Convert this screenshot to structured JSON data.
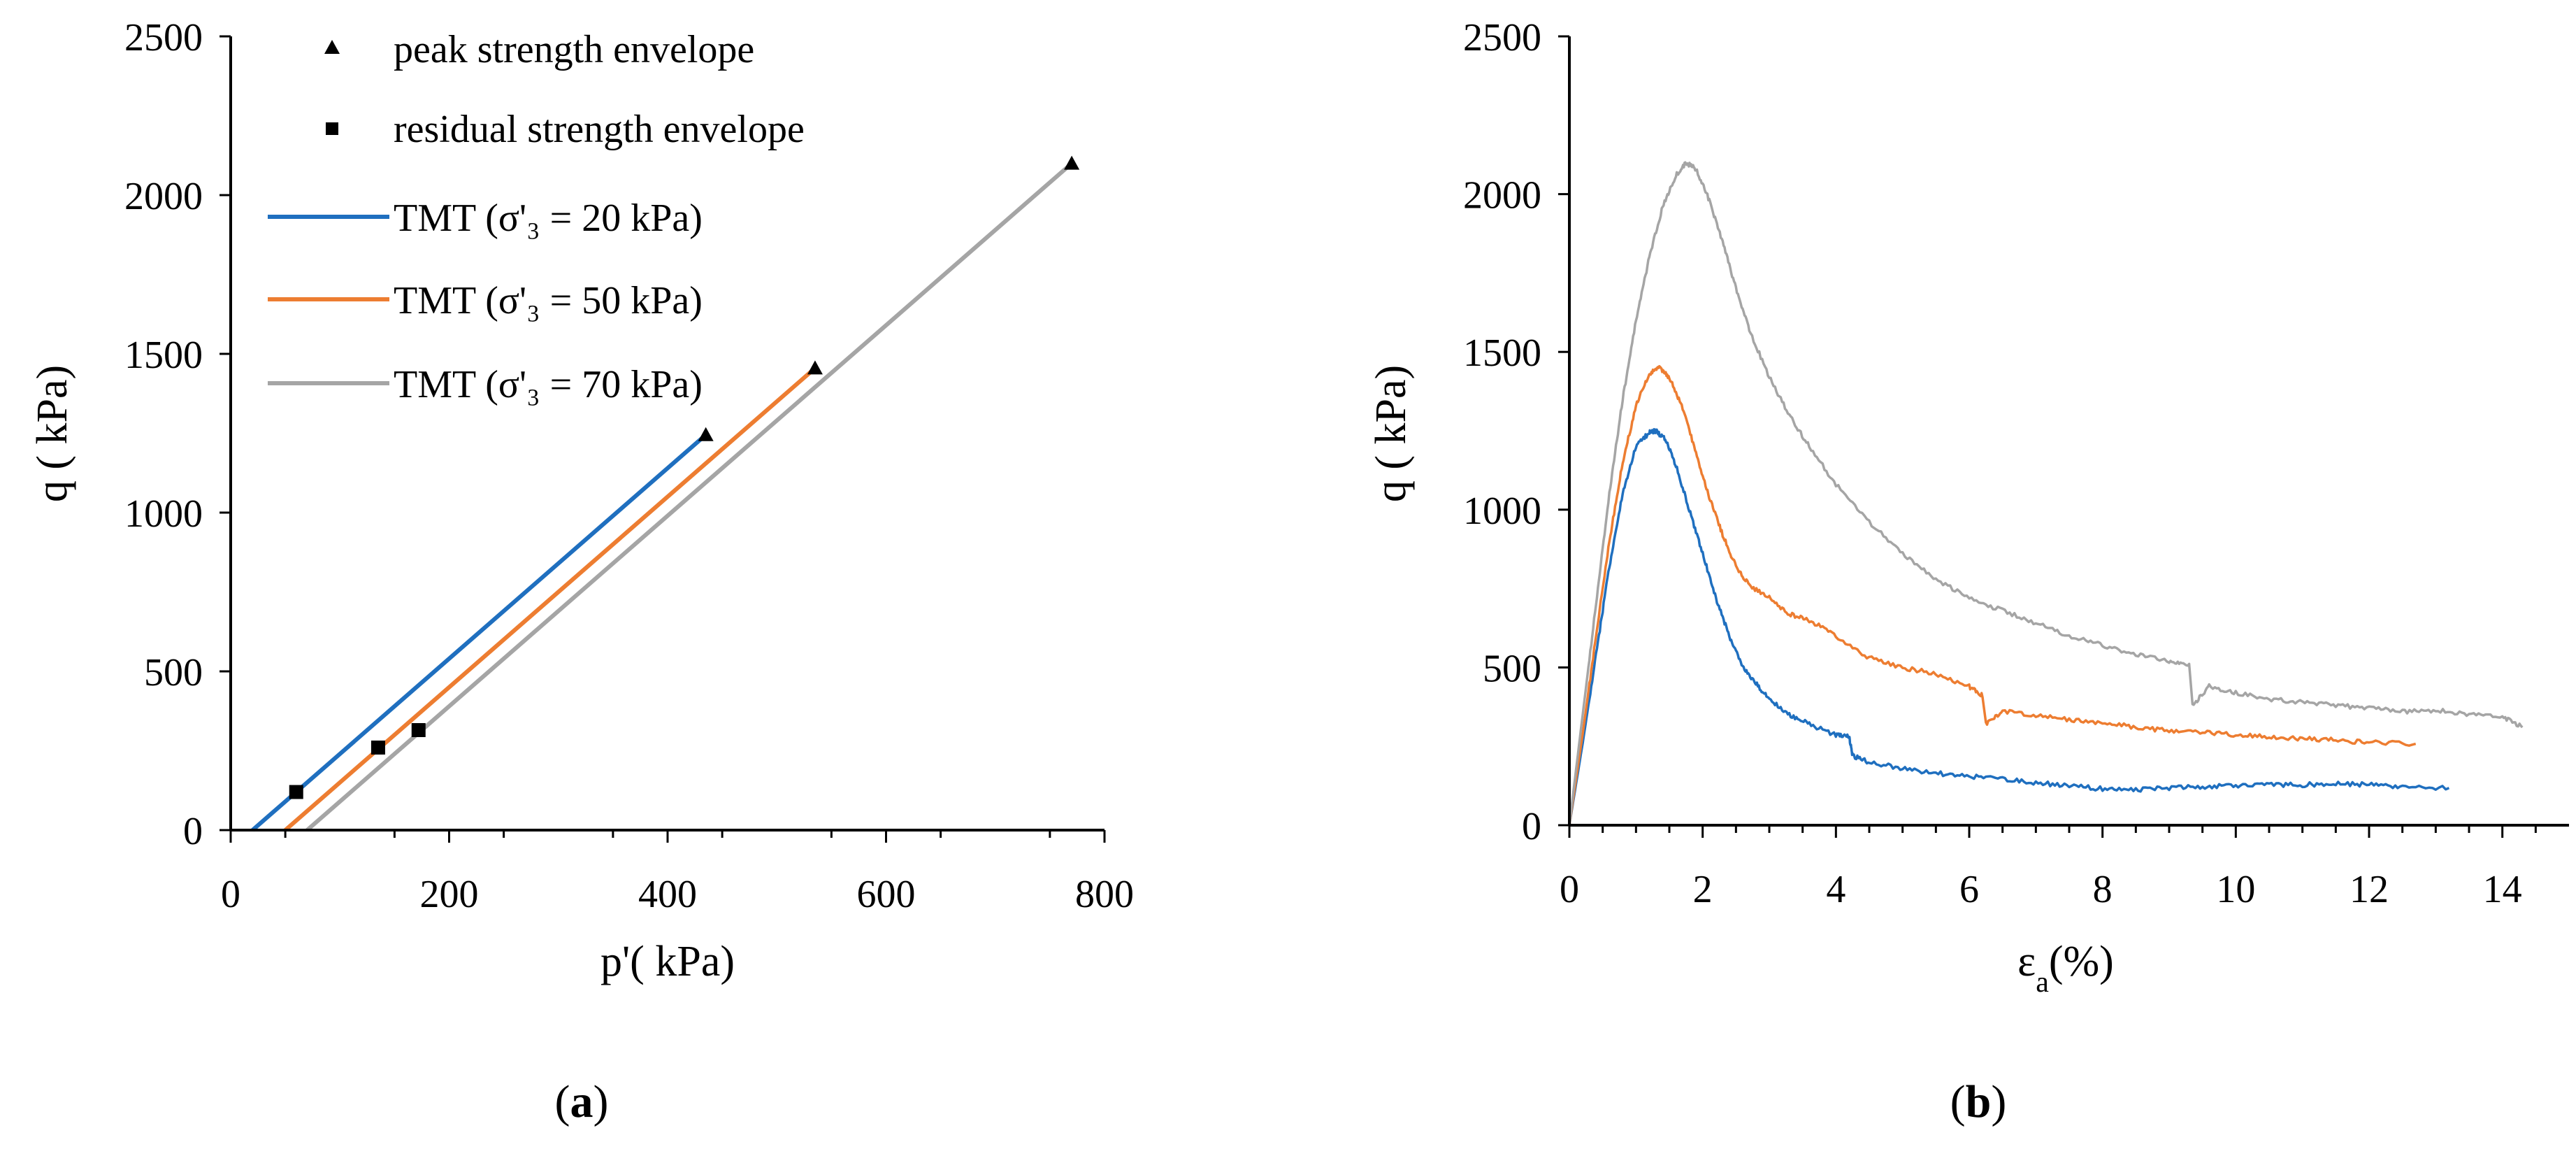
{
  "colors": {
    "tmt20": "#1f6fbf",
    "tmt50": "#ed7d31",
    "tmt70": "#a5a5a5",
    "axis": "#000000",
    "markers": "#000000"
  },
  "panel_labels": {
    "a": {
      "open": "(",
      "letter": "a",
      "close": ")"
    },
    "b": {
      "open": "(",
      "letter": "b",
      "close": ")"
    }
  },
  "chart_data": [
    {
      "type": "line",
      "id": "a",
      "xlabel": "p'( kPa)",
      "ylabel": "q ( kPa)",
      "xlim": [
        0,
        800
      ],
      "ylim": [
        0,
        2500
      ],
      "xticks": [
        "0",
        "200",
        "400",
        "600",
        "800"
      ],
      "yticks": [
        "0",
        "500",
        "1000",
        "1500",
        "2000",
        "2500"
      ],
      "xtick_values": [
        0,
        200,
        400,
        600,
        800
      ],
      "ytick_values": [
        0,
        500,
        1000,
        1500,
        2000,
        2500
      ],
      "legend": {
        "placement": "top-left",
        "entries": [
          {
            "label": "peak strength envelope",
            "kind": "marker-triangle"
          },
          {
            "label": "residual strength envelope",
            "kind": "marker-square"
          },
          {
            "label": "TMT (σ'₃ = 20 kPa)",
            "kind": "line",
            "series": "tmt20"
          },
          {
            "label": "TMT (σ'₃ = 50 kPa)",
            "kind": "line",
            "series": "tmt50"
          },
          {
            "label": "TMT (σ'₃ = 70 kPa)",
            "kind": "line",
            "series": "tmt70"
          }
        ]
      },
      "series": [
        {
          "name": "TMT (σ'₃ = 20 kPa)",
          "color_key": "tmt20",
          "x": [
            20,
            435
          ],
          "y": [
            0,
            1245
          ]
        },
        {
          "name": "TMT (σ'₃ = 50 kPa)",
          "color_key": "tmt50",
          "x": [
            50,
            535
          ],
          "y": [
            0,
            1455
          ]
        },
        {
          "name": "TMT (σ'₃ = 70 kPa)",
          "color_key": "tmt70",
          "x": [
            70,
            770
          ],
          "y": [
            0,
            2100
          ]
        }
      ],
      "peak_points": {
        "x": [
          435,
          535,
          770
        ],
        "y": [
          1245,
          1455,
          2100
        ]
      },
      "residual_points": {
        "x": [
          60,
          135,
          172
        ],
        "y": [
          120,
          260,
          315
        ]
      }
    },
    {
      "type": "line",
      "id": "b",
      "xlabel_main": "ε",
      "xlabel_sub": "a",
      "xlabel_tail": "(%)",
      "ylabel": "q ( kPa)",
      "xlim": [
        0,
        15
      ],
      "ylim": [
        0,
        2500
      ],
      "xticks": [
        "0",
        "2",
        "4",
        "6",
        "8",
        "10",
        "12",
        "14"
      ],
      "yticks": [
        "0",
        "500",
        "1000",
        "1500",
        "2000",
        "2500"
      ],
      "xtick_values": [
        0,
        2,
        4,
        6,
        8,
        10,
        12,
        14
      ],
      "ytick_values": [
        0,
        500,
        1000,
        1500,
        2000,
        2500
      ],
      "minor_x_step": 0.5,
      "series": [
        {
          "name": "TMT (σ'₃ = 20 kPa)",
          "color_key": "tmt20",
          "x": [
            0,
            0.2,
            0.4,
            0.6,
            0.8,
            1.0,
            1.2,
            1.3,
            1.45,
            1.6,
            1.8,
            2.0,
            2.2,
            2.4,
            2.6,
            2.8,
            3.0,
            3.3,
            3.6,
            4.0,
            4.2,
            4.25,
            4.5,
            5.0,
            5.5,
            6.0,
            6.5,
            7.0,
            7.5,
            8.0,
            8.5,
            9.0,
            9.5,
            10.0,
            10.5,
            11.0,
            11.5,
            12.0,
            12.5,
            13.2
          ],
          "y": [
            0,
            260,
            540,
            820,
            1050,
            1200,
            1245,
            1250,
            1220,
            1140,
            1000,
            860,
            720,
            600,
            500,
            450,
            400,
            350,
            320,
            285,
            280,
            220,
            200,
            180,
            165,
            155,
            145,
            135,
            125,
            115,
            112,
            118,
            122,
            125,
            128,
            128,
            132,
            128,
            122,
            118
          ]
        },
        {
          "name": "TMT (σ'₃ = 50 kPa)",
          "color_key": "tmt50",
          "x": [
            0,
            0.2,
            0.4,
            0.6,
            0.8,
            1.0,
            1.2,
            1.35,
            1.5,
            1.7,
            1.9,
            2.1,
            2.3,
            2.5,
            2.7,
            3.0,
            3.3,
            3.6,
            4.0,
            4.5,
            5.0,
            5.5,
            6.0,
            6.2,
            6.25,
            6.5,
            7.0,
            7.5,
            8.0,
            8.5,
            9.0,
            9.5,
            10.0,
            10.5,
            11.0,
            11.5,
            12.0,
            12.7
          ],
          "y": [
            0,
            290,
            600,
            900,
            1150,
            1330,
            1430,
            1450,
            1420,
            1320,
            1180,
            1040,
            920,
            820,
            760,
            720,
            670,
            650,
            600,
            530,
            500,
            480,
            440,
            410,
            320,
            360,
            350,
            335,
            325,
            310,
            300,
            295,
            285,
            280,
            275,
            270,
            262,
            258
          ]
        },
        {
          "name": "TMT (σ'₃ = 70 kPa)",
          "color_key": "tmt70",
          "x": [
            0,
            0.2,
            0.4,
            0.6,
            0.8,
            1.0,
            1.2,
            1.4,
            1.6,
            1.75,
            1.9,
            2.1,
            2.3,
            2.5,
            2.7,
            3.0,
            3.3,
            3.6,
            4.0,
            4.5,
            5.0,
            5.5,
            6.0,
            6.5,
            7.0,
            7.5,
            8.0,
            8.5,
            9.0,
            9.3,
            9.35,
            9.6,
            10.0,
            10.5,
            11.0,
            11.5,
            12.0,
            12.5,
            13.0,
            13.5,
            14.0,
            14.3
          ],
          "y": [
            0,
            350,
            700,
            1050,
            1350,
            1600,
            1800,
            1960,
            2060,
            2100,
            2080,
            1980,
            1850,
            1700,
            1570,
            1420,
            1300,
            1200,
            1080,
            960,
            860,
            780,
            720,
            680,
            640,
            600,
            570,
            540,
            520,
            510,
            380,
            440,
            420,
            400,
            390,
            380,
            370,
            360,
            365,
            350,
            345,
            310
          ]
        }
      ]
    }
  ]
}
